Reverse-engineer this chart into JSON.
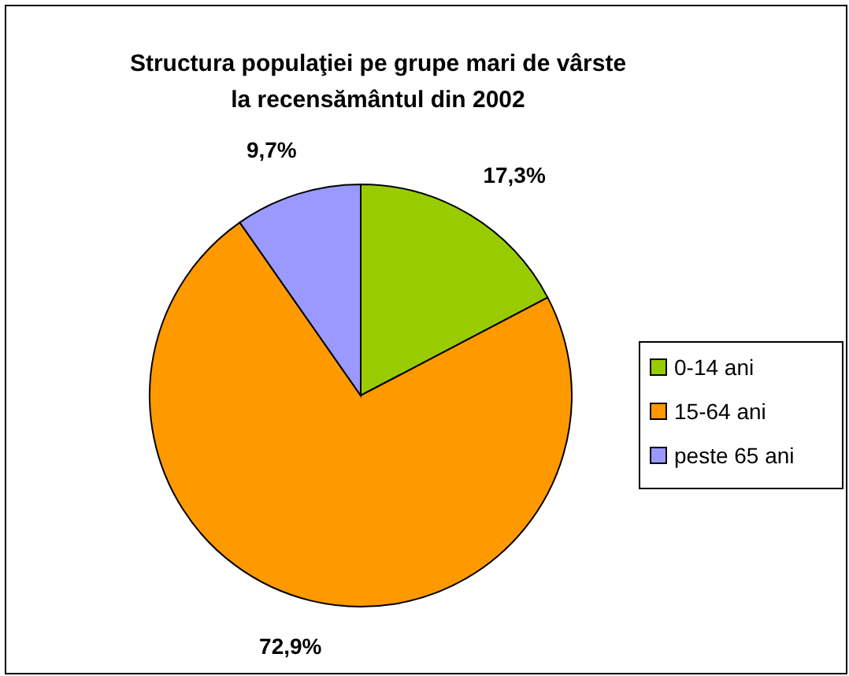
{
  "chart_data": {
    "type": "pie",
    "title": "Structura populaţiei pe grupe mari de vârste\nla recensământul din 2002",
    "categories": [
      "0-14 ani",
      "15-64 ani",
      "peste 65 ani"
    ],
    "values": [
      17.3,
      72.9,
      9.7
    ],
    "value_labels": [
      "17,3%",
      "72,9%",
      "9,7%"
    ],
    "colors": [
      "#99cc00",
      "#ff9900",
      "#9999ff"
    ],
    "legend": "right"
  }
}
